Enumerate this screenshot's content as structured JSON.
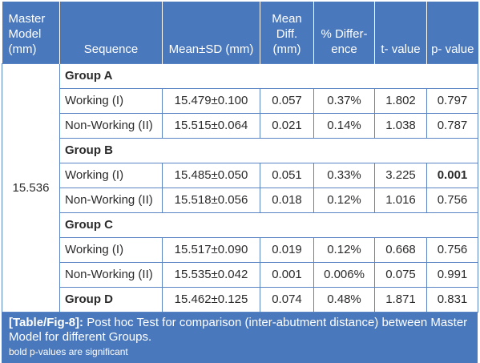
{
  "headers": {
    "master": "Master Model (mm)",
    "sequence": "Sequence",
    "mean_sd": "Mean±SD (mm)",
    "mean_diff": "Mean Diff. (mm)",
    "pct_diff": "% Differ- ence",
    "t_value": "t- value",
    "p_value": "p- value"
  },
  "master_value": "15.536",
  "groups": {
    "a": {
      "label": "Group A"
    },
    "b": {
      "label": "Group B"
    },
    "c": {
      "label": "Group C"
    },
    "d": {
      "label": "Group D",
      "mean_sd": "15.462±0.125",
      "mean_diff": "0.074",
      "pct": "0.48%",
      "t": "1.871",
      "p": "0.831"
    }
  },
  "rows": [
    {
      "sequence": "Working (I)",
      "mean_sd": "15.479±0.100",
      "mean_diff": "0.057",
      "pct": "0.37%",
      "t": "1.802",
      "p": "0.797"
    },
    {
      "sequence": "Non-Working (II)",
      "mean_sd": "15.515±0.064",
      "mean_diff": "0.021",
      "pct": "0.14%",
      "t": "1.038",
      "p": "0.787"
    },
    {
      "sequence": "Working (I)",
      "mean_sd": "15.485±0.050",
      "mean_diff": "0.051",
      "pct": "0.33%",
      "t": "3.225",
      "p": "0.001"
    },
    {
      "sequence": "Non-Working (II)",
      "mean_sd": "15.518±0.056",
      "mean_diff": "0.018",
      "pct": "0.12%",
      "t": "1.016",
      "p": "0.756"
    },
    {
      "sequence": "Working (I)",
      "mean_sd": "15.517±0.090",
      "mean_diff": "0.019",
      "pct": "0.12%",
      "t": "0.668",
      "p": "0.756"
    },
    {
      "sequence": "Non-Working (II)",
      "mean_sd": "15.535±0.042",
      "mean_diff": "0.001",
      "pct": "0.006%",
      "t": "0.075",
      "p": "0.991"
    }
  ],
  "caption": {
    "label": "[Table/Fig-8]:",
    "text": "Post hoc Test for comparison (inter-abutment distance) between Master Model for different Groups.",
    "note": "bold p-values are significant"
  },
  "colors": {
    "header_bg": "#4a78bd",
    "border": "#5b84c4",
    "header_text": "#ffffff"
  }
}
